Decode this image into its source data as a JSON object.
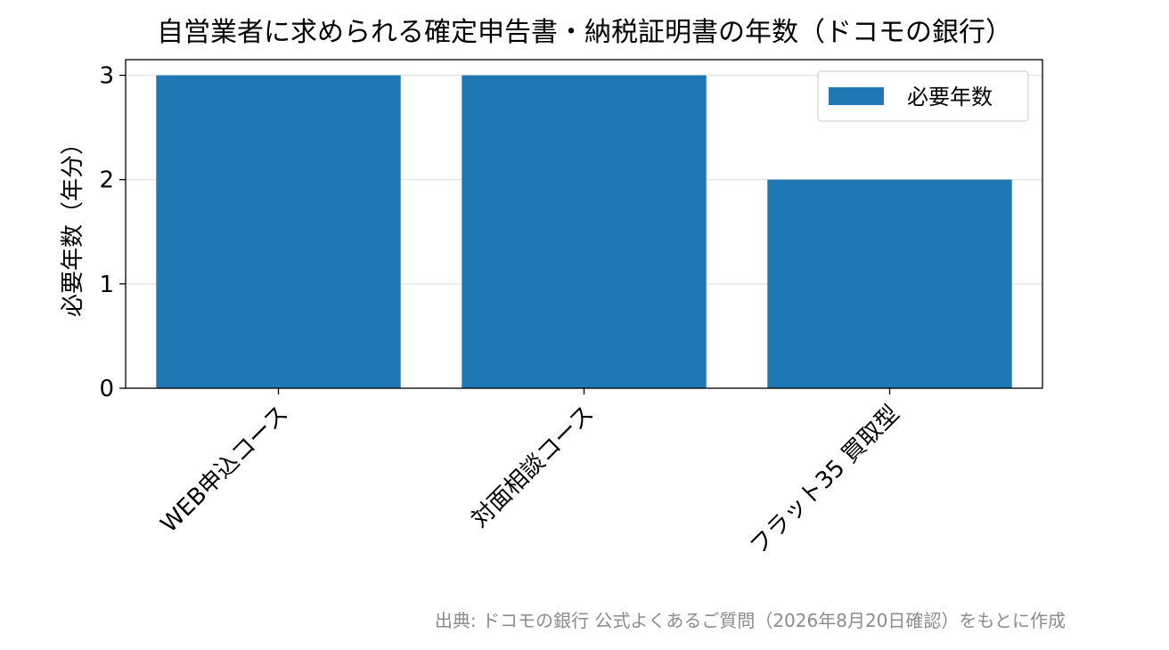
{
  "chart_data": {
    "type": "bar",
    "title": "自営業者に求められる確定申告書・納税証明書の年数（ドコモの銀行）",
    "xlabel": "",
    "ylabel": "必要年数（年分）",
    "categories": [
      "WEB申込コース",
      "対面相談コース",
      "フラット35 買取型"
    ],
    "series": [
      {
        "name": "必要年数",
        "values": [
          3,
          3,
          2
        ],
        "color": "#1f77b4"
      }
    ],
    "ylim": [
      0,
      3.15
    ],
    "yticks": [
      "0",
      "1",
      "2",
      "3"
    ],
    "grid": "y",
    "legend": "top-right"
  },
  "source_note": "出典: ドコモの銀行 公式よくあるご質問（2026年8月20日確認）をもとに作成"
}
